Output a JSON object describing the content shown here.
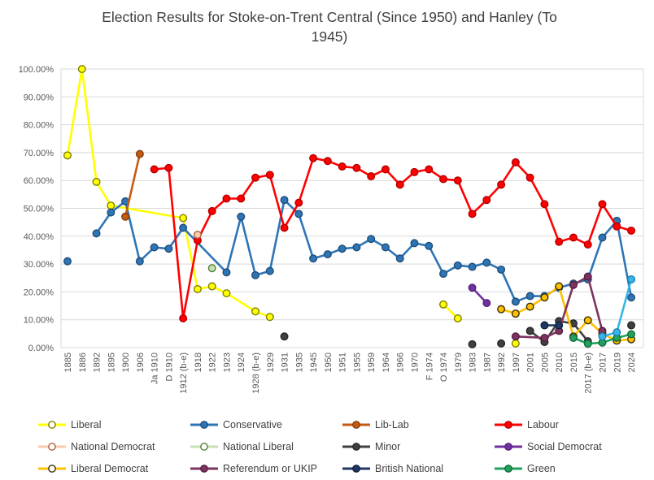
{
  "title_lines": [
    "Election Results for Stoke-on-Trent Central (Since 1950) and Hanley (To",
    "1945)"
  ],
  "y_axis": {
    "labels": [
      "100.00%",
      "90.00%",
      "80.00%",
      "70.00%",
      "60.00%",
      "50.00%",
      "40.00%",
      "30.00%",
      "20.00%",
      "10.00%",
      "0.00%"
    ],
    "min": 0,
    "max": 100,
    "step": 10
  },
  "chart_data": {
    "type": "line",
    "title": "Election Results for Stoke-on-Trent Central (Since 1950) and Hanley (To 1945)",
    "xlabel": "",
    "ylabel": "",
    "ylim": [
      0,
      100
    ],
    "grid": "horizontal",
    "legend_position": "bottom",
    "categories": [
      "1885",
      "1886",
      "1892",
      "1895",
      "1900",
      "1906",
      "Ja 1910",
      "D 1910",
      "1912 (b-e)",
      "1918",
      "1922",
      "1923",
      "1924",
      "1928 (b-e)",
      "1929",
      "1931",
      "1935",
      "1945",
      "1950",
      "1951",
      "1955",
      "1959",
      "1964",
      "1966",
      "1970",
      "F 1974",
      "O 1974",
      "1979",
      "1983",
      "1987",
      "1992",
      "1997",
      "2001",
      "2005",
      "2010",
      "2015",
      "2017 (b-e)",
      "2017",
      "2019",
      "2024"
    ],
    "series": [
      {
        "name": "Liberal",
        "color": "#FFFF00",
        "ring": "#7F7F00",
        "legend_marker": "open",
        "in_legend": true,
        "points": [
          [
            "1885",
            69
          ],
          [
            "1886",
            100
          ],
          [
            "1892",
            59.5
          ],
          [
            "1895",
            51
          ],
          [
            "1912 (b-e)",
            46.5
          ],
          [
            "1918",
            21
          ],
          [
            "1922",
            22
          ],
          [
            "1923",
            19.5
          ],
          [
            "1928 (b-e)",
            13
          ],
          [
            "1929",
            11
          ],
          [
            "O 1974",
            15.5
          ],
          [
            "1979",
            10.5
          ],
          [
            "1997",
            1.5
          ]
        ],
        "breaks_after": [
          "1929",
          "1979"
        ]
      },
      {
        "name": "Conservative",
        "color": "#2E75B6",
        "ring": "#1F4E79",
        "legend_marker": "filled",
        "in_legend": true,
        "points": [
          [
            "1885",
            31
          ],
          [
            "1892",
            41
          ],
          [
            "1895",
            48.5
          ],
          [
            "1900",
            52.5
          ],
          [
            "1906",
            31
          ],
          [
            "Ja 1910",
            36
          ],
          [
            "D 1910",
            35.5
          ],
          [
            "1912 (b-e)",
            43
          ],
          [
            "1923",
            27
          ],
          [
            "1924",
            47
          ],
          [
            "1928 (b-e)",
            26
          ],
          [
            "1929",
            27.5
          ],
          [
            "1931",
            53
          ],
          [
            "1935",
            48
          ],
          [
            "1945",
            32
          ],
          [
            "1950",
            33.5
          ],
          [
            "1951",
            35.5
          ],
          [
            "1955",
            36
          ],
          [
            "1959",
            39
          ],
          [
            "1964",
            36
          ],
          [
            "1966",
            32
          ],
          [
            "1970",
            37.5
          ],
          [
            "F 1974",
            36.5
          ],
          [
            "O 1974",
            26.5
          ],
          [
            "1979",
            29.5
          ],
          [
            "1983",
            29
          ],
          [
            "1987",
            30.5
          ],
          [
            "1992",
            28
          ],
          [
            "1997",
            16.5
          ],
          [
            "2001",
            18.5
          ],
          [
            "2005",
            18.5
          ],
          [
            "2010",
            21.5
          ],
          [
            "2015",
            23
          ],
          [
            "2017 (b-e)",
            24.5
          ],
          [
            "2017",
            39.5
          ],
          [
            "2019",
            45.5
          ],
          [
            "2024",
            18
          ]
        ],
        "breaks_after": [
          "1885"
        ]
      },
      {
        "name": "Lib-Lab",
        "color": "#C55A11",
        "ring": "#843C0C",
        "legend_marker": "filled",
        "in_legend": true,
        "points": [
          [
            "1900",
            47
          ],
          [
            "1906",
            69.5
          ]
        ],
        "breaks_after": []
      },
      {
        "name": "Labour",
        "color": "#FF0000",
        "ring": "#B30000",
        "legend_marker": "filled",
        "in_legend": true,
        "points": [
          [
            "Ja 1910",
            64
          ],
          [
            "D 1910",
            64.5
          ],
          [
            "1912 (b-e)",
            10.5
          ],
          [
            "1918",
            38.5
          ],
          [
            "1922",
            49
          ],
          [
            "1923",
            53.5
          ],
          [
            "1924",
            53.5
          ],
          [
            "1928 (b-e)",
            61
          ],
          [
            "1929",
            62
          ],
          [
            "1931",
            43
          ],
          [
            "1935",
            52
          ],
          [
            "1945",
            68
          ],
          [
            "1950",
            67
          ],
          [
            "1951",
            65
          ],
          [
            "1955",
            64.5
          ],
          [
            "1959",
            61.5
          ],
          [
            "1964",
            64
          ],
          [
            "1966",
            58.5
          ],
          [
            "1970",
            63
          ],
          [
            "F 1974",
            64
          ],
          [
            "O 1974",
            60.5
          ],
          [
            "1979",
            60
          ],
          [
            "1983",
            48
          ],
          [
            "1987",
            53
          ],
          [
            "1992",
            58.5
          ],
          [
            "1997",
            66.5
          ],
          [
            "2001",
            61
          ],
          [
            "2005",
            51.5
          ],
          [
            "2010",
            38
          ],
          [
            "2015",
            39.5
          ],
          [
            "2017 (b-e)",
            37
          ],
          [
            "2017",
            51.5
          ],
          [
            "2019",
            43.5
          ],
          [
            "2024",
            42
          ]
        ],
        "breaks_after": []
      },
      {
        "name": "National Democrat",
        "color": "#F8CBAD",
        "ring": "#B06040",
        "legend_marker": "open",
        "in_legend": true,
        "points": [
          [
            "1918",
            40.5
          ]
        ],
        "breaks_after": []
      },
      {
        "name": "National Liberal",
        "color": "#C6E0B4",
        "ring": "#538135",
        "legend_marker": "open",
        "in_legend": true,
        "points": [
          [
            "1922",
            28.5
          ]
        ],
        "breaks_after": []
      },
      {
        "name": "Minor",
        "color": "#404040",
        "ring": "#262626",
        "legend_marker": "filled",
        "in_legend": true,
        "points": [
          [
            "1931",
            4
          ],
          [
            "1983",
            1.2
          ],
          [
            "1992",
            1.5
          ],
          [
            "2001",
            6
          ],
          [
            "2005",
            2
          ],
          [
            "2010",
            9.5
          ],
          [
            "2015",
            8.7
          ],
          [
            "2017 (b-e)",
            2.3
          ],
          [
            "2024",
            8
          ]
        ],
        "breaks_after": [
          "1931",
          "1983",
          "1992",
          "2017 (b-e)"
        ]
      },
      {
        "name": "Social Democrat",
        "color": "#7030A0",
        "ring": "#54257A",
        "legend_marker": "filled",
        "in_legend": true,
        "points": [
          [
            "1983",
            21.5
          ],
          [
            "1987",
            16
          ]
        ],
        "breaks_after": []
      },
      {
        "name": "Liberal Democrat",
        "color": "#FFC000",
        "ring": "#3B3000",
        "legend_marker": "open",
        "in_legend": true,
        "points": [
          [
            "1992",
            13.8
          ],
          [
            "1997",
            12.2
          ],
          [
            "2001",
            14.7
          ],
          [
            "2005",
            18
          ],
          [
            "2010",
            22
          ],
          [
            "2015",
            4
          ],
          [
            "2017 (b-e)",
            9.8
          ],
          [
            "2017",
            5
          ],
          [
            "2019",
            2.5
          ],
          [
            "2024",
            3
          ]
        ],
        "breaks_after": []
      },
      {
        "name": "Referendum or UKIP",
        "color": "#7D3360",
        "ring": "#551F40",
        "legend_marker": "filled",
        "in_legend": true,
        "points": [
          [
            "1997",
            4
          ],
          [
            "2005",
            3.5
          ],
          [
            "2010",
            6
          ],
          [
            "2015",
            22.5
          ],
          [
            "2017 (b-e)",
            25.5
          ],
          [
            "2017",
            6
          ]
        ],
        "breaks_after": []
      },
      {
        "name": "British National",
        "color": "#1F3864",
        "ring": "#10203C",
        "legend_marker": "filled",
        "in_legend": true,
        "points": [
          [
            "2005",
            8
          ],
          [
            "2010",
            8
          ]
        ],
        "breaks_after": []
      },
      {
        "name": "Green",
        "color": "#22A05C",
        "ring": "#156A3C",
        "legend_marker": "filled",
        "in_legend": true,
        "points": [
          [
            "2015",
            3.5
          ],
          [
            "2017 (b-e)",
            1.4
          ],
          [
            "2017",
            1.8
          ],
          [
            "2019",
            3.5
          ],
          [
            "2024",
            4.8
          ]
        ],
        "breaks_after": []
      },
      {
        "name": "",
        "color": "#38B6E8",
        "ring": "#1E7FAE",
        "legend_marker": "filled",
        "in_legend": false,
        "points": [
          [
            "2017",
            4
          ],
          [
            "2019",
            5.5
          ],
          [
            "2024",
            24.5
          ]
        ],
        "breaks_after": []
      }
    ]
  }
}
